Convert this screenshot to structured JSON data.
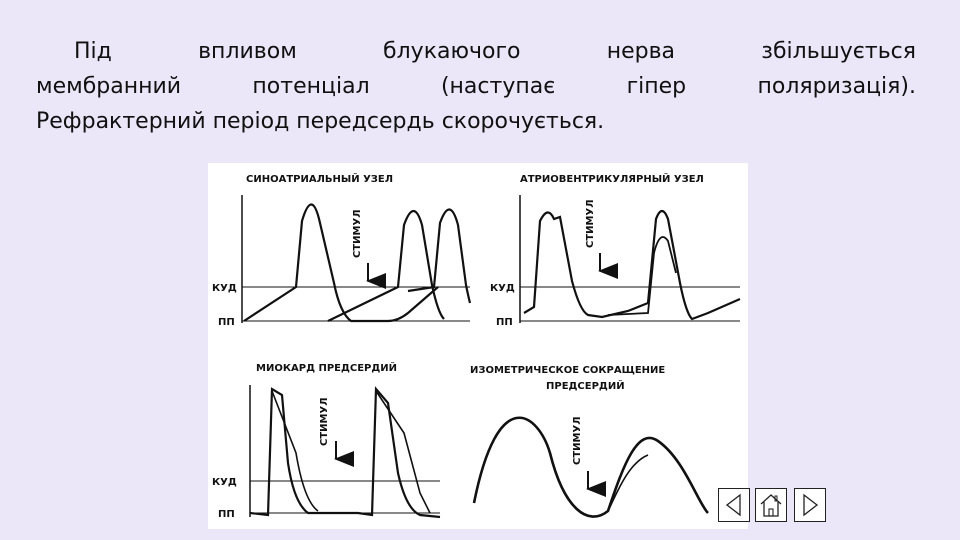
{
  "text": {
    "line1_words": [
      "Під",
      "впливом",
      "блукаючого",
      "нерва",
      "збільшується"
    ],
    "line2_words": [
      "мембранний",
      "потенціал",
      "(наступає",
      "гіпер",
      "поляризація)."
    ],
    "line3": "Рефрактерний період передсердь скорочується."
  },
  "figure": {
    "panel_sa_title": "СИНОАТРИАЛЬНЫЙ  УЗЕЛ",
    "panel_av_title": "АТРИОВЕНТРИКУЛЯРНЫЙ УЗЕЛ",
    "panel_myo_title": "МИОКАРД  ПРЕДСЕРДИЙ",
    "panel_iso_title_line1": "ИЗОМЕТРИЧЕСКОЕ СОКРАЩЕНИЕ",
    "panel_iso_title_line2": "ПРЕДСЕРДИЙ",
    "stimulus_label": "СТИМУЛ",
    "threshold_label": "КУД",
    "resting_label": "ПП"
  },
  "nav": {
    "prev_icon": "triangle-left-icon",
    "home_icon": "home-icon",
    "next_icon": "triangle-right-icon"
  }
}
